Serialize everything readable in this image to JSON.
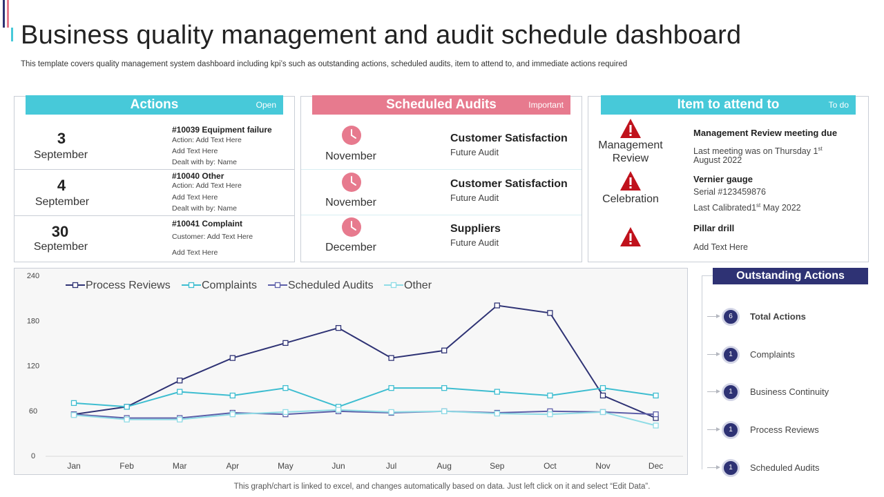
{
  "page": {
    "title": "Business quality management and audit schedule dashboard",
    "subtitle": "This template covers quality management system dashboard including kpi’s such as outstanding actions, scheduled audits, item to attend to,  and immediate actions required",
    "footnote": "This graph/chart is linked to excel,  and changes automatically based on data. Just left click on it and select “Edit Data”."
  },
  "colors": {
    "actions_header": "#47c9d9",
    "audits_header": "#e77a8e",
    "attend_header": "#47c9d9",
    "clock_icon": "#e77a8e",
    "warning_icon": "#c0121c",
    "navy": "#2e3274"
  },
  "actions": {
    "title": "Actions",
    "tag": "Open",
    "items": [
      {
        "day": "3",
        "month": "September",
        "heading": "#10039 Equipment failure",
        "lines": [
          "Action: Add Text Here",
          "Add Text Here",
          "Dealt  with by: Name"
        ]
      },
      {
        "day": "4",
        "month": "September",
        "heading": "#10040 Other",
        "lines": [
          "Action: Add Text Here",
          "Add Text Here",
          "Dealt  with by: Name"
        ]
      },
      {
        "day": "30",
        "month": "September",
        "heading": "#10041 Complaint",
        "lines": [
          "Customer:  Add Text Here",
          "Add Text Here"
        ]
      }
    ]
  },
  "audits": {
    "title": "Scheduled Audits",
    "tag": "Important",
    "icon": "clock-icon",
    "items": [
      {
        "month": "November",
        "title": "Customer Satisfaction",
        "sub": "Future Audit"
      },
      {
        "month": "November",
        "title": "Customer Satisfaction",
        "sub": "Future Audit"
      },
      {
        "month": "December",
        "title": "Suppliers",
        "sub": "Future Audit"
      }
    ]
  },
  "attend": {
    "title": "Item to attend to",
    "tag": "To do",
    "icon": "warning-icon",
    "items": [
      {
        "label_1": "Management",
        "label_2": "Review",
        "title": "Management Review meeting due",
        "line_1a": "Last meeting was on Thursday  1",
        "line_1sup": "st",
        "line_2": "August 2022"
      },
      {
        "label_1": "Celebration",
        "title": "Vernier gauge",
        "line_1": "Serial #123459876",
        "line_2a": "Last Calibrated1",
        "line_2sup": "st",
        "line_2b": " May 2022"
      },
      {
        "title": "Pillar drill",
        "line_1": "Add Text Here"
      }
    ]
  },
  "outstanding": {
    "title": "Outstanding Actions",
    "items": [
      {
        "count": "6",
        "label": "Total Actions",
        "bold": true
      },
      {
        "count": "1",
        "label": "Complaints",
        "bold": false
      },
      {
        "count": "1",
        "label": "Business Continuity",
        "bold": false
      },
      {
        "count": "1",
        "label": "Process Reviews",
        "bold": false
      },
      {
        "count": "1",
        "label": "Scheduled Audits",
        "bold": false
      }
    ]
  },
  "chart_data": {
    "type": "line",
    "categories": [
      "Jan",
      "Feb",
      "Mar",
      "Apr",
      "May",
      "Jun",
      "Jul",
      "Aug",
      "Sep",
      "Oct",
      "Nov",
      "Dec"
    ],
    "ylim": [
      0,
      240
    ],
    "yticks": [
      0,
      60,
      120,
      180,
      240
    ],
    "legend_position": "top-left",
    "grid": false,
    "series": [
      {
        "name": "Process Reviews",
        "color": "#2e3274",
        "values": [
          55,
          65,
          100,
          130,
          150,
          170,
          130,
          140,
          200,
          190,
          80,
          50
        ]
      },
      {
        "name": "Complaints",
        "color": "#3dbdd0",
        "values": [
          70,
          65,
          85,
          80,
          90,
          65,
          90,
          90,
          85,
          80,
          90,
          80
        ]
      },
      {
        "name": "Scheduled Audits",
        "color": "#5c5ea8",
        "values": [
          55,
          50,
          50,
          57,
          55,
          59,
          57,
          59,
          57,
          59,
          58,
          55
        ]
      },
      {
        "name": "Other",
        "color": "#8fdce6",
        "values": [
          54,
          48,
          48,
          55,
          58,
          61,
          58,
          59,
          56,
          55,
          58,
          40
        ]
      }
    ]
  }
}
